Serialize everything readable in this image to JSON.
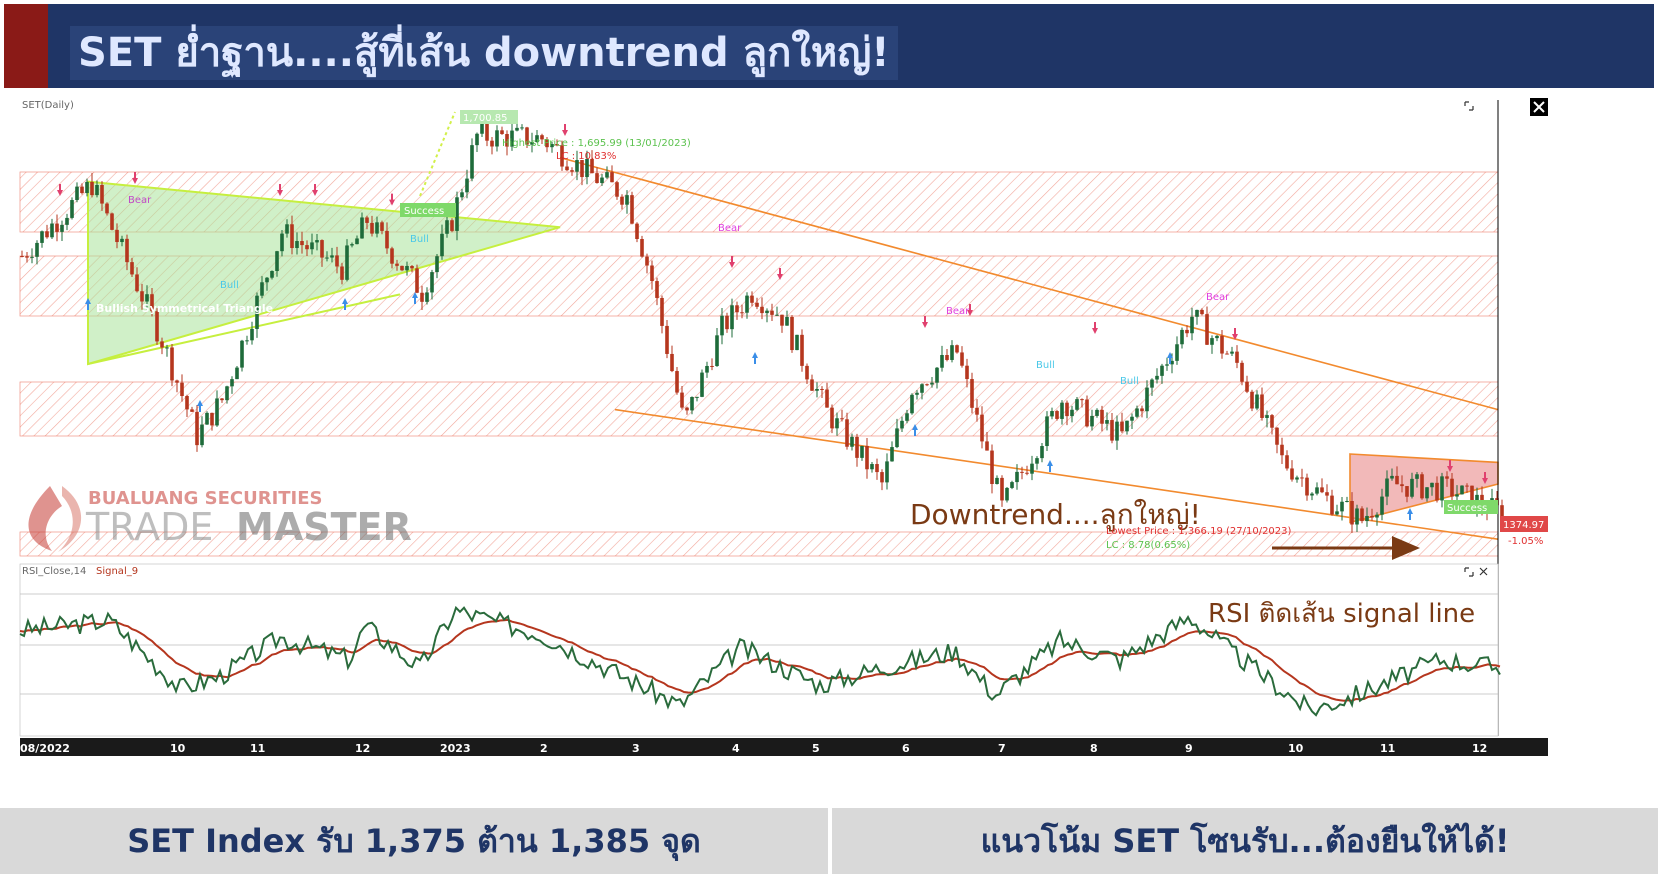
{
  "header": {
    "title": "SET ย่ำฐาน....สู้ที่เส้น downtrend ลูกใหญ่!"
  },
  "footer": {
    "left": "SET Index รับ 1,375 ต้าน 1,385 จุด",
    "right": "แนวโน้ม SET โซนรับ...ต้องยืนให้ได้!"
  },
  "watermark": {
    "line1": "BUALUANG SECURITIES",
    "line2a": "TRADE",
    "line2b": "MASTER"
  },
  "colors": {
    "header_bg": "#1f3566",
    "accent": "#8a1a17",
    "candle_up": "#1e6b3a",
    "candle_down": "#b5361e",
    "trend": "#f28a2e",
    "rsi": "#2a6b3c",
    "signal": "#b5361e",
    "zone": "#e8604a"
  },
  "chart_data": {
    "type": "candlestick",
    "price_panel": {
      "label": "SET(Daily)",
      "y_range": [
        1340,
        1720
      ],
      "last_price": "1374.97",
      "change": "-1.05%",
      "annotations": {
        "target_high": "1,700.85",
        "highest_price": "Highest Price : 1,695.99 (13/01/2023)",
        "highest_lc": "LC : 10.83%",
        "lowest_price": "Lowest Price : 1,366.19 (27/10/2023)",
        "lowest_lc": "LC : 8.78(0.65%)",
        "pattern": "Bullish Symmetrical Triangle",
        "success": "Success",
        "bear": "Bear",
        "bull": "Bull",
        "downtrend": "Downtrend....ลูกใหญ่!"
      }
    },
    "rsi_panel": {
      "label": "RSI_Close,14",
      "signal_label": "Signal_9",
      "annotation": "RSI ติดเส้น signal line",
      "y_range": [
        0,
        100
      ]
    },
    "x_ticks": [
      "08/2022",
      "10",
      "11",
      "12",
      "2023",
      "2",
      "3",
      "4",
      "5",
      "6",
      "7",
      "8",
      "9",
      "10",
      "11",
      "12"
    ],
    "series_anchors": [
      {
        "x": 0,
        "p": 1590
      },
      {
        "x": 70,
        "p": 1650
      },
      {
        "x": 140,
        "p": 1520
      },
      {
        "x": 175,
        "p": 1440
      },
      {
        "x": 200,
        "p": 1470
      },
      {
        "x": 260,
        "p": 1610
      },
      {
        "x": 320,
        "p": 1580
      },
      {
        "x": 345,
        "p": 1620
      },
      {
        "x": 400,
        "p": 1560
      },
      {
        "x": 430,
        "p": 1620
      },
      {
        "x": 455,
        "p": 1690
      },
      {
        "x": 520,
        "p": 1688
      },
      {
        "x": 565,
        "p": 1660
      },
      {
        "x": 605,
        "p": 1640
      },
      {
        "x": 630,
        "p": 1570
      },
      {
        "x": 662,
        "p": 1450
      },
      {
        "x": 700,
        "p": 1530
      },
      {
        "x": 730,
        "p": 1560
      },
      {
        "x": 760,
        "p": 1540
      },
      {
        "x": 805,
        "p": 1460
      },
      {
        "x": 860,
        "p": 1400
      },
      {
        "x": 890,
        "p": 1480
      },
      {
        "x": 935,
        "p": 1510
      },
      {
        "x": 980,
        "p": 1380
      },
      {
        "x": 1040,
        "p": 1470
      },
      {
        "x": 1100,
        "p": 1440
      },
      {
        "x": 1170,
        "p": 1540
      },
      {
        "x": 1215,
        "p": 1500
      },
      {
        "x": 1260,
        "p": 1420
      },
      {
        "x": 1300,
        "p": 1390
      },
      {
        "x": 1340,
        "p": 1370
      },
      {
        "x": 1370,
        "p": 1400
      },
      {
        "x": 1430,
        "p": 1395
      },
      {
        "x": 1480,
        "p": 1375
      }
    ],
    "rsi_anchors": [
      {
        "x": 0,
        "r": 62
      },
      {
        "x": 90,
        "r": 68
      },
      {
        "x": 160,
        "r": 28
      },
      {
        "x": 200,
        "r": 35
      },
      {
        "x": 260,
        "r": 58
      },
      {
        "x": 330,
        "r": 45
      },
      {
        "x": 345,
        "r": 65
      },
      {
        "x": 400,
        "r": 40
      },
      {
        "x": 435,
        "r": 74
      },
      {
        "x": 520,
        "r": 60
      },
      {
        "x": 580,
        "r": 42
      },
      {
        "x": 660,
        "r": 18
      },
      {
        "x": 720,
        "r": 52
      },
      {
        "x": 800,
        "r": 30
      },
      {
        "x": 860,
        "r": 40
      },
      {
        "x": 935,
        "r": 50
      },
      {
        "x": 975,
        "r": 24
      },
      {
        "x": 1040,
        "r": 56
      },
      {
        "x": 1100,
        "r": 45
      },
      {
        "x": 1170,
        "r": 70
      },
      {
        "x": 1215,
        "r": 48
      },
      {
        "x": 1290,
        "r": 15
      },
      {
        "x": 1340,
        "r": 25
      },
      {
        "x": 1420,
        "r": 45
      },
      {
        "x": 1480,
        "r": 40
      }
    ]
  }
}
